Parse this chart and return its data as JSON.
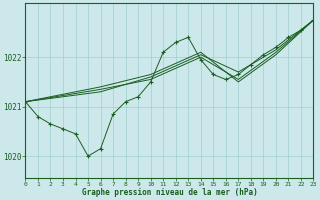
{
  "title": "Graphe pression niveau de la mer (hPa)",
  "background_color": "#cce8ea",
  "grid_color": "#9fcfcf",
  "line_color": "#1a5e20",
  "xlim": [
    0,
    23
  ],
  "ylim": [
    1019.55,
    1023.1
  ],
  "yticks": [
    1020,
    1021,
    1022
  ],
  "xticks": [
    0,
    1,
    2,
    3,
    4,
    5,
    6,
    7,
    8,
    9,
    10,
    11,
    12,
    13,
    14,
    15,
    16,
    17,
    18,
    19,
    20,
    21,
    22,
    23
  ],
  "series": [
    {
      "x": [
        0,
        1,
        2,
        3,
        4,
        5,
        6,
        7,
        8,
        9,
        10,
        11,
        12,
        13,
        14,
        15,
        16,
        17,
        18,
        19,
        20,
        21,
        22,
        23
      ],
      "y": [
        1021.1,
        1020.8,
        1020.65,
        1020.55,
        1020.45,
        1020.0,
        1020.15,
        1020.85,
        1021.1,
        1021.2,
        1021.5,
        1022.1,
        1022.3,
        1022.4,
        1021.95,
        1021.65,
        1021.55,
        1021.65,
        1021.85,
        1022.05,
        1022.2,
        1022.4,
        1022.55,
        1022.75
      ],
      "style": "line_marker"
    },
    {
      "x": [
        0,
        6,
        10,
        14,
        17,
        20,
        23
      ],
      "y": [
        1021.1,
        1021.35,
        1021.55,
        1022.0,
        1021.55,
        1022.1,
        1022.75
      ],
      "style": "line_only"
    },
    {
      "x": [
        0,
        6,
        10,
        14,
        17,
        20,
        23
      ],
      "y": [
        1021.1,
        1021.3,
        1021.6,
        1022.05,
        1021.7,
        1022.15,
        1022.75
      ],
      "style": "line_only"
    },
    {
      "x": [
        0,
        6,
        10,
        14,
        17,
        20,
        23
      ],
      "y": [
        1021.1,
        1021.4,
        1021.65,
        1022.1,
        1021.5,
        1022.05,
        1022.75
      ],
      "style": "line_only"
    }
  ],
  "figwidth": 3.2,
  "figheight": 2.0,
  "dpi": 100
}
